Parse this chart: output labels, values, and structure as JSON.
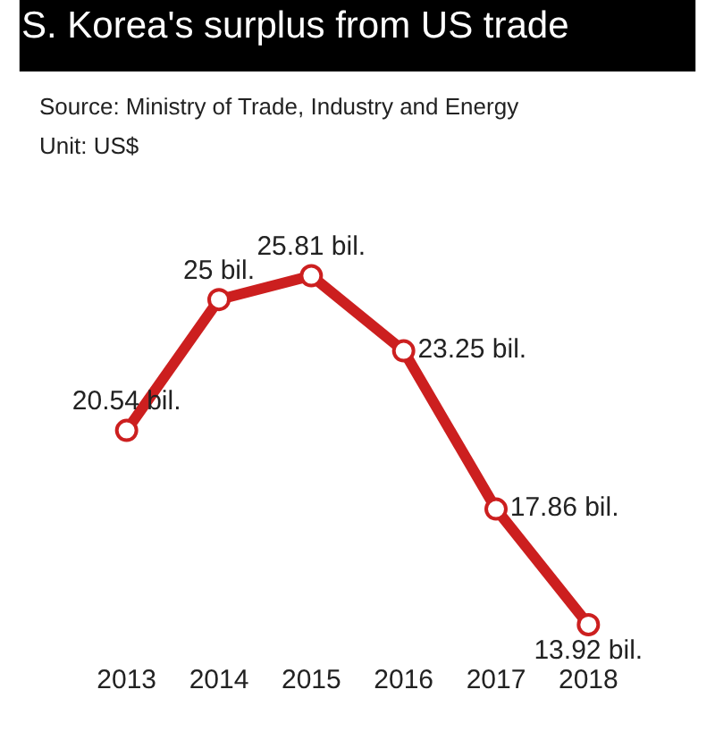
{
  "chart_data": {
    "type": "line",
    "title": "S. Korea's surplus from US trade",
    "annotations": [
      "Source: Ministry of Trade, Industry and Energy",
      "Unit: US$"
    ],
    "categories": [
      "2013",
      "2014",
      "2015",
      "2016",
      "2017",
      "2018"
    ],
    "series": [
      {
        "color": "#cc1f1f",
        "values": [
          20.54,
          25,
          25.81,
          23.25,
          17.86,
          13.92
        ],
        "value_labels": [
          "20.54 bil.",
          "25 bil.",
          "25.81 bil.",
          "23.25 bil.",
          "17.86 bil.",
          "13.92 bil."
        ]
      }
    ],
    "marker": "circle",
    "line_style": "solid",
    "legend": false
  }
}
